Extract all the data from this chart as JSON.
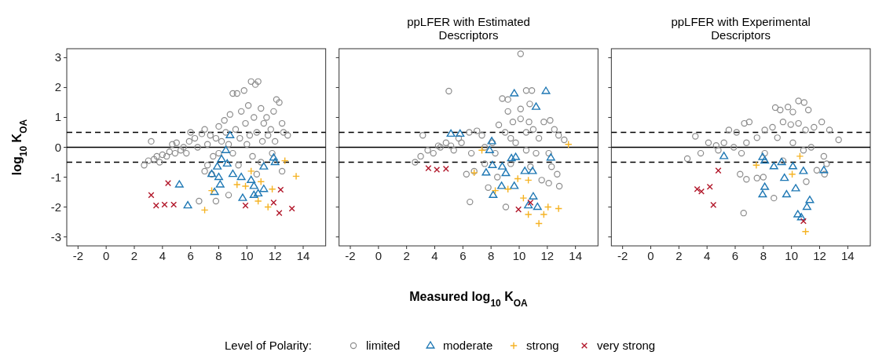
{
  "chart_data": [
    {
      "type": "scatter",
      "ylabel": "log$_{10}$ K$_{OA}$",
      "xlim": [
        -2.8,
        15.6
      ],
      "ylim": [
        -3.3,
        3.3
      ],
      "xticks": [
        -2,
        0,
        2,
        4,
        6,
        8,
        10,
        12,
        14
      ],
      "yticks": [
        -3,
        -2,
        -1,
        0,
        1,
        2,
        3
      ],
      "ref_lines": [
        {
          "axis": "y",
          "value": 0,
          "line_style": "solid"
        },
        {
          "axis": "y",
          "value": 0.5,
          "line_style": "dashed"
        },
        {
          "axis": "y",
          "value": -0.5,
          "line_style": "dashed"
        }
      ],
      "series": [
        {
          "color": "#8c8c8c",
          "marker": "circle",
          "x": [
            2.7,
            3.0,
            3.2,
            3.4,
            3.6,
            3.8,
            4.0,
            4.3,
            4.5,
            4.7,
            4.9,
            5.0,
            5.3,
            5.5,
            5.7,
            5.9,
            6.0,
            6.3,
            6.5,
            6.8,
            7.0,
            7.2,
            7.4,
            7.6,
            7.8,
            8.0,
            8.2,
            8.4,
            8.5,
            8.7,
            8.8,
            9.0,
            9.2,
            9.3,
            9.5,
            9.6,
            9.8,
            9.9,
            10.1,
            10.2,
            10.3,
            10.5,
            10.6,
            10.7,
            10.8,
            11.0,
            11.1,
            11.2,
            11.4,
            11.5,
            11.7,
            11.9,
            12.0,
            12.1,
            12.3,
            12.5,
            12.6,
            12.9,
            9.0,
            9.4,
            10.0,
            10.4,
            11.8,
            12.5,
            7.0,
            7.5,
            7.8,
            8.7,
            6.6,
            10.7,
            7.2,
            8.0,
            11.0
          ],
          "values": [
            -0.6,
            -0.45,
            0.2,
            -0.4,
            -0.3,
            -0.5,
            -0.25,
            -0.3,
            -0.15,
            0.1,
            -0.2,
            0.15,
            -0.1,
            0.0,
            -0.2,
            0.2,
            0.5,
            0.3,
            0.0,
            0.45,
            0.6,
            0.1,
            0.4,
            -0.3,
            0.3,
            0.7,
            0.2,
            0.9,
            0.5,
            0.1,
            1.1,
            1.8,
            0.6,
            1.8,
            0.3,
            1.2,
            1.9,
            0.8,
            1.4,
            0.4,
            2.2,
            1.0,
            2.1,
            0.5,
            2.2,
            1.3,
            0.2,
            0.8,
            1.0,
            0.4,
            0.6,
            1.2,
            0.2,
            1.6,
            1.5,
            0.8,
            0.5,
            0.4,
            -0.2,
            -0.6,
            0.1,
            -0.3,
            -0.2,
            -0.8,
            -0.8,
            -0.9,
            -1.8,
            -1.6,
            -1.8,
            -0.9,
            -0.6,
            -0.2,
            -0.5
          ]
        },
        {
          "color": "#1f78b4",
          "marker": "triangle",
          "x": [
            8.8,
            8.5,
            8.2,
            7.9,
            7.5,
            8.0,
            8.1,
            7.7,
            5.2,
            5.8,
            9.0,
            9.6,
            10.3,
            10.5,
            10.8,
            11.2,
            9.7,
            11.9,
            12.0,
            11.2,
            10.5,
            8.6
          ],
          "values": [
            0.4,
            -0.1,
            -0.4,
            -0.65,
            -0.9,
            -1.0,
            -1.25,
            -1.5,
            -1.25,
            -1.95,
            -0.9,
            -1.0,
            -1.1,
            -1.3,
            -1.55,
            -1.4,
            -1.7,
            -0.35,
            -0.5,
            -0.65,
            -1.6,
            -0.55
          ]
        },
        {
          "color": "#f5b324",
          "marker": "plus",
          "x": [
            12.7,
            13.5,
            7.5,
            7.0,
            9.3,
            9.9,
            11.0,
            11.8,
            10.8,
            11.5,
            10.3
          ],
          "values": [
            -0.45,
            -0.97,
            -1.45,
            -2.1,
            -1.25,
            -1.3,
            -1.15,
            -1.4,
            -1.8,
            -2.0,
            -0.8
          ]
        },
        {
          "color": "#b2182b",
          "marker": "cross",
          "x": [
            3.2,
            4.4,
            3.55,
            4.15,
            4.8,
            9.9,
            11.9,
            12.4,
            12.3,
            13.2
          ],
          "values": [
            -1.6,
            -1.2,
            -1.95,
            -1.92,
            -1.92,
            -1.95,
            -1.85,
            -1.42,
            -2.2,
            -2.05
          ]
        }
      ]
    },
    {
      "type": "scatter",
      "title": "ppLFER with Estimated Descriptors",
      "xlabel": "Measured log$_{10}$ K$_{OA}$",
      "tick_labels": "x",
      "legend": "bottom",
      "legend_title": "Level of Polarity:",
      "xlim": [
        -2.8,
        15.6
      ],
      "ylim": [
        -3.3,
        3.3
      ],
      "xticks": [
        -2,
        0,
        2,
        4,
        6,
        8,
        10,
        12,
        14
      ],
      "yticks": [
        -3,
        -2,
        -1,
        0,
        1,
        2,
        3
      ],
      "ref_lines": [
        {
          "axis": "y",
          "value": 0,
          "line_style": "solid"
        },
        {
          "axis": "y",
          "value": 0.5,
          "line_style": "dashed"
        },
        {
          "axis": "y",
          "value": -0.5,
          "line_style": "dashed"
        }
      ],
      "series": [
        {
          "name": "limited",
          "color": "#8c8c8c",
          "marker": "circle",
          "x": [
            10.1,
            5.0,
            8.8,
            9.2,
            10.5,
            10.9,
            10.75,
            9.2,
            10.1,
            3.15,
            2.6,
            3.0,
            3.5,
            3.9,
            4.4,
            4.8,
            5.35,
            5.9,
            6.45,
            7.0,
            6.6,
            7.55,
            8.1,
            8.55,
            9.0,
            9.4,
            9.55,
            10.1,
            10.7,
            11.0,
            11.4,
            11.75,
            12.2,
            12.5,
            12.8,
            13.2,
            9.75,
            10.5,
            11.2,
            12.1,
            12.3,
            12.7,
            12.85,
            12.1,
            11.6,
            6.25,
            6.8,
            7.8,
            8.45,
            6.5,
            9.05,
            7.55,
            9.4,
            10.8,
            8.3,
            5.15,
            5.7,
            4.25,
            7.35,
            10.5
          ],
          "values": [
            3.13,
            1.88,
            1.63,
            1.6,
            1.9,
            1.9,
            1.45,
            1.2,
            1.28,
            0.4,
            -0.5,
            -0.3,
            -0.1,
            -0.2,
            0,
            0.15,
            -0.1,
            0.15,
            0.5,
            0.55,
            -0.2,
            0,
            0.15,
            0.75,
            0.5,
            0.3,
            0.85,
            0.95,
            0.85,
            0.6,
            0.3,
            0.85,
            0.9,
            0.6,
            0.4,
            0.25,
            0.15,
            -0.1,
            -0.2,
            -0.2,
            -0.65,
            -0.9,
            -1.3,
            -1.2,
            -1.1,
            -0.9,
            -0.8,
            -1.35,
            -1.0,
            -1.83,
            -2.0,
            -0.55,
            -0.55,
            -0.65,
            -0.2,
            0.05,
            0.3,
            0.05,
            0.4,
            0.5
          ]
        },
        {
          "name": "moderate",
          "color": "#1f78b4",
          "marker": "triangle",
          "x": [
            5.15,
            5.8,
            9.65,
            11.9,
            11.2,
            8.05,
            7.9,
            8.1,
            7.65,
            8.8,
            9.05,
            9.45,
            9.75,
            8.75,
            9.65,
            8.15,
            10.4,
            10.95,
            12.25,
            11.0,
            10.65,
            11.3
          ],
          "values": [
            0.45,
            0.45,
            1.8,
            1.88,
            1.35,
            0.2,
            -0.1,
            -0.6,
            -0.85,
            -0.65,
            -0.87,
            -0.37,
            -0.33,
            -1.3,
            -1.3,
            -1.6,
            -0.8,
            -0.8,
            -0.35,
            -1.65,
            -1.95,
            -2.0
          ]
        },
        {
          "name": "strong",
          "color": "#f5b324",
          "marker": "plus",
          "x": [
            7.35,
            6.8,
            9.9,
            10.65,
            9.2,
            8.3,
            10.3,
            10.65,
            11.4,
            11.75,
            12.05,
            12.8,
            13.5
          ],
          "values": [
            -0.1,
            -0.85,
            -1.05,
            -1.1,
            -1.4,
            -1.45,
            -1.7,
            -2.25,
            -2.55,
            -2.25,
            -2.0,
            -2.05,
            0.1
          ]
        },
        {
          "name": "very strong",
          "color": "#b2182b",
          "marker": "cross",
          "x": [
            3.55,
            4.15,
            4.8,
            9.95,
            10.8
          ],
          "values": [
            -0.7,
            -0.75,
            -0.72,
            -2.08,
            -1.85
          ]
        }
      ]
    },
    {
      "type": "scatter",
      "title": "ppLFER with Experimental Descriptors",
      "tick_labels": "x",
      "xlim": [
        -2.8,
        15.6
      ],
      "ylim": [
        -3.3,
        3.3
      ],
      "xticks": [
        -2,
        0,
        2,
        4,
        6,
        8,
        10,
        12,
        14
      ],
      "yticks": [
        -3,
        -2,
        -1,
        0,
        1,
        2,
        3
      ],
      "ref_lines": [
        {
          "axis": "y",
          "value": 0,
          "line_style": "solid"
        },
        {
          "axis": "y",
          "value": 0.5,
          "line_style": "dashed"
        },
        {
          "axis": "y",
          "value": -0.5,
          "line_style": "dashed"
        }
      ],
      "series": [
        {
          "color": "#8c8c8c",
          "marker": "circle",
          "x": [
            10.5,
            10.9,
            11.2,
            8.85,
            9.2,
            9.75,
            10.1,
            6.65,
            7.0,
            2.6,
            3.17,
            3.55,
            4.1,
            4.65,
            5.2,
            5.55,
            6.1,
            5.9,
            6.8,
            7.55,
            8.1,
            8.65,
            9.0,
            9.4,
            9.95,
            10.5,
            11.0,
            11.6,
            12.15,
            12.7,
            13.35,
            10.1,
            10.85,
            11.4,
            12.3,
            12.5,
            11.8,
            12.35,
            11.05,
            6.35,
            6.8,
            7.55,
            8.0,
            8.75,
            6.6,
            6.45,
            8.1,
            9.4,
            4.8
          ],
          "values": [
            1.55,
            1.5,
            1.25,
            1.33,
            1.25,
            1.35,
            1.18,
            0.8,
            0.85,
            -0.38,
            0.37,
            -0.2,
            0.15,
            0.06,
            0.15,
            0.58,
            0.5,
            0,
            0.15,
            0.32,
            0.58,
            0.67,
            0.32,
            0.85,
            0.76,
            0.8,
            0.58,
            0.67,
            0.85,
            0.58,
            0.25,
            0.15,
            -0.1,
            0,
            -0.3,
            -0.55,
            -0.77,
            -0.9,
            -1.15,
            -0.9,
            -1.07,
            -1.03,
            -1.0,
            -1.7,
            -2.2,
            -0.2,
            -0.2,
            -0.45,
            -0.1
          ]
        },
        {
          "color": "#1f78b4",
          "marker": "triangle",
          "x": [
            5.2,
            7.95,
            8.1,
            8.1,
            7.95,
            8.75,
            9.3,
            9.5,
            9.65,
            10.3,
            10.1,
            10.85,
            12.3,
            11.3,
            11.1,
            10.45,
            10.7
          ],
          "values": [
            -0.3,
            -0.33,
            -0.45,
            -1.33,
            -1.58,
            -0.64,
            -0.5,
            -1.03,
            -1.58,
            -1.38,
            -0.64,
            -0.8,
            -0.77,
            -1.77,
            -2.0,
            -2.25,
            -2.35
          ]
        },
        {
          "color": "#f5b324",
          "marker": "plus",
          "x": [
            7.5,
            10.6,
            10.05,
            11.0
          ],
          "values": [
            -0.6,
            -0.3,
            -0.9,
            -2.82
          ]
        },
        {
          "color": "#b2182b",
          "marker": "cross",
          "x": [
            4.8,
            3.3,
            3.6,
            4.2,
            4.45,
            10.85
          ],
          "values": [
            -0.78,
            -1.4,
            -1.48,
            -1.32,
            -1.93,
            -2.47
          ]
        }
      ]
    }
  ]
}
